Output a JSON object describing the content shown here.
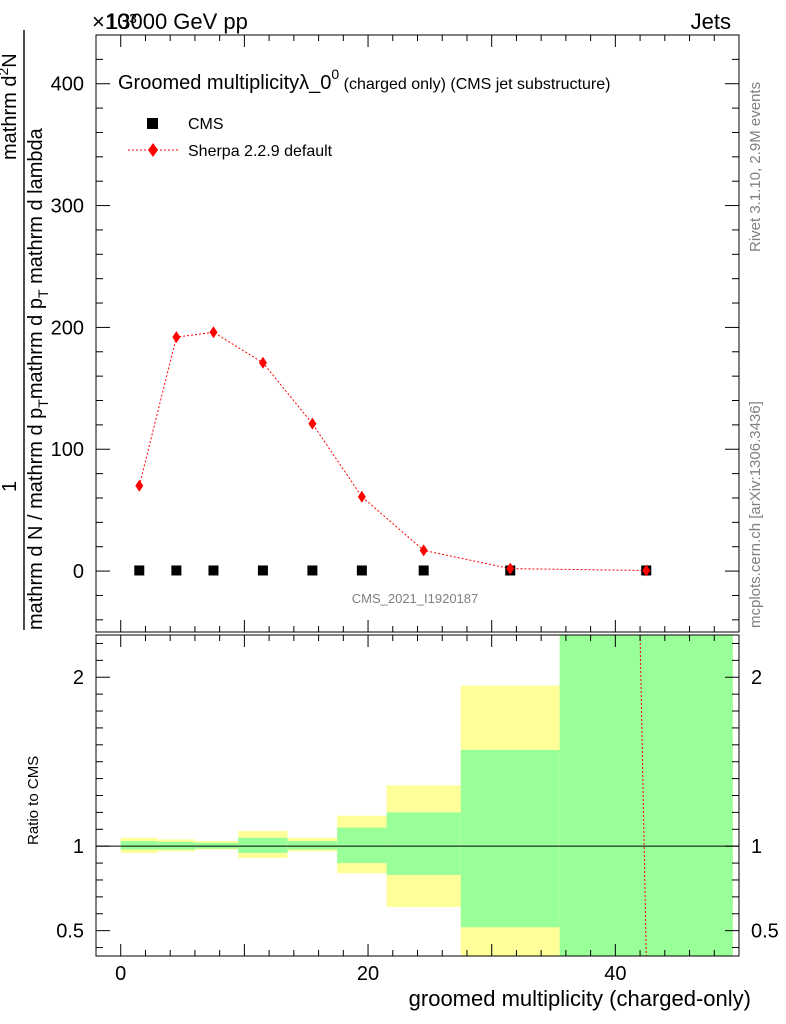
{
  "header": {
    "left": "13000 GeV pp",
    "right": "Jets",
    "exponent": "×10³"
  },
  "main_title": {
    "prefix": "Groomed multiplicityλ_0",
    "superscript": "0",
    "suffix": " (charged only) (CMS jet substructure)"
  },
  "ylabel_parts": {
    "numerator_top": "1",
    "denominator_left": "mathrm d N / mathrm d p",
    "sub_T1": "T",
    "mid": "mathrm d p",
    "sub_T2": "T",
    "tail": " mathrm d lambda",
    "inner_top": "mathrm d",
    "inner_sup": "2",
    "inner_N": "N"
  },
  "side_labels": {
    "rivet": "Rivet 3.1.10,  2.9M events",
    "mcplots": "mcplots.cern.ch [arXiv:1306.3436]"
  },
  "watermark": "CMS_2021_I1920187",
  "ratio_ylabel": "Ratio to CMS",
  "xlabel": "groomed multiplicity (charged-only)",
  "chart_data": {
    "type": "scatter",
    "xlim": [
      -2,
      50
    ],
    "ylim": [
      -50,
      440
    ],
    "y_ticks": [
      0,
      100,
      200,
      300,
      400
    ],
    "x_ticks": [
      0,
      20,
      40
    ],
    "series": [
      {
        "name": "CMS",
        "marker": "square",
        "color": "#000000",
        "x": [
          1.5,
          4.5,
          7.5,
          11.5,
          15.5,
          19.5,
          24.5,
          31.5,
          42.5
        ],
        "y": [
          0.5,
          0.5,
          0.5,
          0.5,
          0.5,
          0.5,
          0.5,
          0.5,
          0.5
        ]
      },
      {
        "name": "Sherpa 2.2.9 default",
        "marker": "diamond",
        "line": "dotted",
        "color": "#ff0000",
        "x": [
          1.5,
          4.5,
          7.5,
          11.5,
          15.5,
          19.5,
          24.5,
          31.5,
          42.5
        ],
        "y": [
          70,
          192,
          196,
          171,
          121,
          61,
          17,
          2,
          0.5
        ]
      }
    ],
    "ratio": {
      "ylim": [
        0.35,
        2.25
      ],
      "y_ticks": [
        0.5,
        1,
        2
      ],
      "bins": [
        {
          "lo": 0,
          "hi": 3,
          "tot": [
            0.96,
            1.05
          ],
          "stat": [
            0.98,
            1.03
          ]
        },
        {
          "lo": 3,
          "hi": 6,
          "tot": [
            0.97,
            1.04
          ],
          "stat": [
            0.98,
            1.025
          ]
        },
        {
          "lo": 6,
          "hi": 9.5,
          "tot": [
            0.98,
            1.03
          ],
          "stat": [
            0.985,
            1.02
          ]
        },
        {
          "lo": 9.5,
          "hi": 13.5,
          "tot": [
            0.93,
            1.09
          ],
          "stat": [
            0.96,
            1.05
          ]
        },
        {
          "lo": 13.5,
          "hi": 17.5,
          "tot": [
            0.97,
            1.05
          ],
          "stat": [
            0.98,
            1.03
          ]
        },
        {
          "lo": 17.5,
          "hi": 21.5,
          "tot": [
            0.84,
            1.18
          ],
          "stat": [
            0.9,
            1.11
          ]
        },
        {
          "lo": 21.5,
          "hi": 27.5,
          "tot": [
            0.64,
            1.36
          ],
          "stat": [
            0.83,
            1.2
          ]
        },
        {
          "lo": 27.5,
          "hi": 35.5,
          "tot": [
            0.35,
            1.95
          ],
          "stat": [
            0.52,
            1.57
          ]
        },
        {
          "lo": 35.5,
          "hi": 49.5,
          "tot": [
            0.35,
            2.25
          ],
          "stat": [
            0.35,
            2.25
          ]
        }
      ],
      "sherpa_line": {
        "x": [
          42.0,
          42.5
        ],
        "y": [
          2.25,
          0.35
        ]
      }
    },
    "legend_position": "top-left",
    "colors": {
      "stat": "#99ff99",
      "total": "#ffff99",
      "sherpa": "#ff0000",
      "data": "#000000"
    }
  }
}
